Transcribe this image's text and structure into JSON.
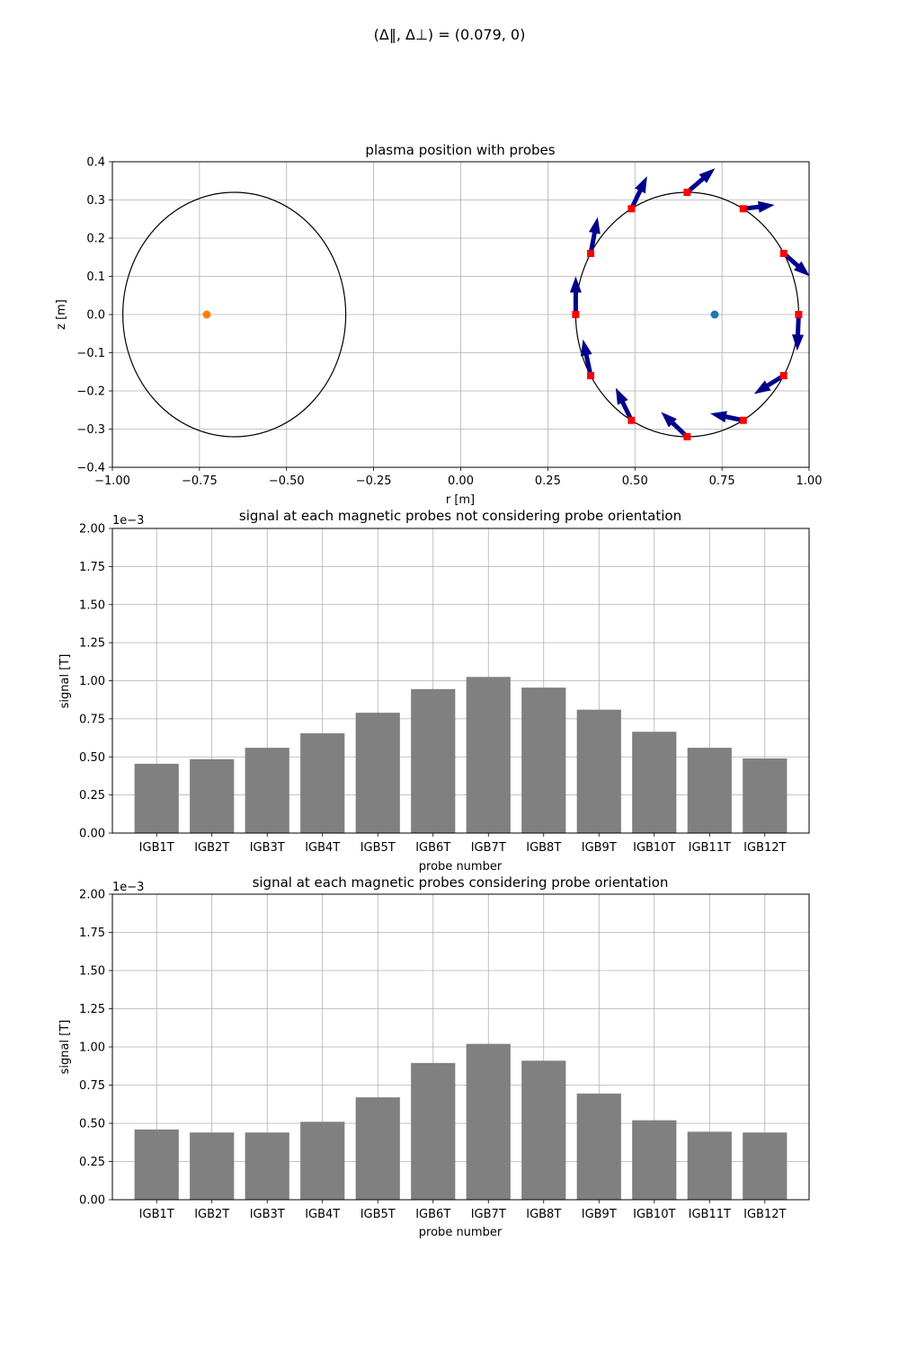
{
  "suptitle": "(Δ‖, Δ⊥) = (0.079, 0)",
  "chart_data": [
    {
      "type": "scatter",
      "title": "plasma position with probes",
      "xlabel": "r [m]",
      "ylabel": "z [m]",
      "xlim": [
        -1.0,
        1.0
      ],
      "ylim": [
        -0.4,
        0.4
      ],
      "xticks": [
        "−1.00",
        "−0.75",
        "−0.50",
        "−0.25",
        "0.00",
        "0.25",
        "0.50",
        "0.75",
        "1.00"
      ],
      "yticks": [
        "−0.4",
        "−0.3",
        "−0.2",
        "−0.1",
        "0.0",
        "0.1",
        "0.2",
        "0.3",
        "0.4"
      ],
      "grid": true,
      "vessel_circles": [
        {
          "center": [
            0.65,
            0.0
          ],
          "radius": 0.32
        },
        {
          "center": [
            -0.65,
            0.0
          ],
          "radius": 0.32
        }
      ],
      "plasma_centers": [
        {
          "r": 0.729,
          "z": 0.0,
          "color": "#1f77b4"
        },
        {
          "r": -0.729,
          "z": 0.0,
          "color": "#ff7f0e"
        }
      ],
      "probe_color": "#ff0000",
      "arrow_color": "#00008b",
      "probes": [
        {
          "r": 0.97,
          "z": 0.0,
          "dr": -0.004,
          "dz": -0.095
        },
        {
          "r": 0.927,
          "z": 0.16,
          "dr": 0.075,
          "dz": -0.06
        },
        {
          "r": 0.811,
          "z": 0.277,
          "dr": 0.09,
          "dz": 0.01
        },
        {
          "r": 0.65,
          "z": 0.32,
          "dr": 0.08,
          "dz": 0.063
        },
        {
          "r": 0.49,
          "z": 0.277,
          "dr": 0.045,
          "dz": 0.085
        },
        {
          "r": 0.373,
          "z": 0.16,
          "dr": 0.02,
          "dz": 0.095
        },
        {
          "r": 0.33,
          "z": 0.0,
          "dr": 0.0,
          "dz": 0.1
        },
        {
          "r": 0.373,
          "z": -0.16,
          "dr": -0.022,
          "dz": 0.095
        },
        {
          "r": 0.49,
          "z": -0.277,
          "dr": -0.045,
          "dz": 0.085
        },
        {
          "r": 0.65,
          "z": -0.32,
          "dr": -0.075,
          "dz": 0.065
        },
        {
          "r": 0.811,
          "z": -0.277,
          "dr": -0.095,
          "dz": 0.018
        },
        {
          "r": 0.927,
          "z": -0.16,
          "dr": -0.085,
          "dz": -0.048
        }
      ]
    },
    {
      "type": "bar",
      "title": "signal at each magnetic probes not considering probe orientation",
      "xlabel": "probe number",
      "ylabel": "signal [T]",
      "offset_label": "1e−3",
      "ylim": [
        0,
        2.0
      ],
      "yticks": [
        "0.00",
        "0.25",
        "0.50",
        "0.75",
        "1.00",
        "1.25",
        "1.50",
        "1.75",
        "2.00"
      ],
      "grid": true,
      "bar_color": "#808080",
      "categories": [
        "IGB1T",
        "IGB2T",
        "IGB3T",
        "IGB4T",
        "IGB5T",
        "IGB6T",
        "IGB7T",
        "IGB8T",
        "IGB9T",
        "IGB10T",
        "IGB11T",
        "IGB12T"
      ],
      "values": [
        0.455,
        0.485,
        0.56,
        0.655,
        0.79,
        0.945,
        1.025,
        0.955,
        0.81,
        0.665,
        0.56,
        0.49
      ]
    },
    {
      "type": "bar",
      "title": "signal at each magnetic probes considering probe orientation",
      "xlabel": "probe number",
      "ylabel": "signal [T]",
      "offset_label": "1e−3",
      "ylim": [
        0,
        2.0
      ],
      "yticks": [
        "0.00",
        "0.25",
        "0.50",
        "0.75",
        "1.00",
        "1.25",
        "1.50",
        "1.75",
        "2.00"
      ],
      "grid": true,
      "bar_color": "#808080",
      "categories": [
        "IGB1T",
        "IGB2T",
        "IGB3T",
        "IGB4T",
        "IGB5T",
        "IGB6T",
        "IGB7T",
        "IGB8T",
        "IGB9T",
        "IGB10T",
        "IGB11T",
        "IGB12T"
      ],
      "values": [
        0.46,
        0.44,
        0.44,
        0.51,
        0.67,
        0.895,
        1.02,
        0.91,
        0.695,
        0.52,
        0.445,
        0.44
      ]
    }
  ]
}
